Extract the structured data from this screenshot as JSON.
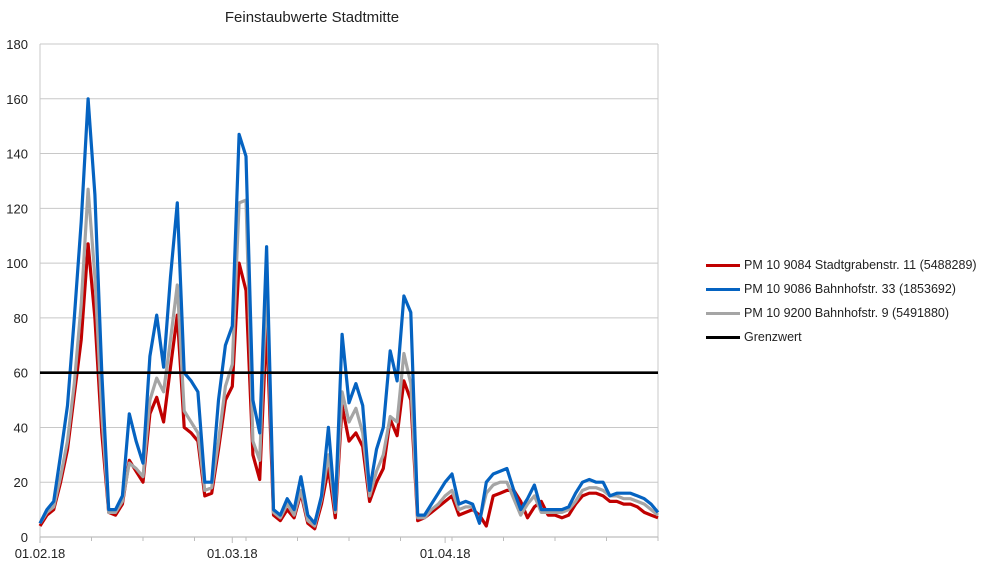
{
  "chart_data": {
    "type": "line",
    "title": "Feinstaubwerte Stadtmitte",
    "xlabel": "",
    "ylabel": "",
    "ylim": [
      0,
      180
    ],
    "yticks": [
      0,
      20,
      40,
      60,
      80,
      100,
      120,
      140,
      160,
      180
    ],
    "xtick_labels": [
      "01.02.18",
      "01.03.18",
      "01.04.18"
    ],
    "xtick_day_index": [
      0,
      28,
      59
    ],
    "x_start": "01.02.18",
    "n_days": 91,
    "grid": "horizontal",
    "legend_position": "right",
    "threshold": {
      "name": "Grenzwert",
      "value": 60,
      "color": "#000000"
    },
    "series": [
      {
        "name": "PM 10 9084 Stadtgrabenstr. 11 (5488289)",
        "color": "#C00000",
        "values": [
          4,
          8,
          10,
          20,
          32,
          52,
          72,
          107,
          80,
          38,
          9,
          8,
          12,
          28,
          24,
          20,
          45,
          51,
          42,
          62,
          81,
          40,
          38,
          35,
          15,
          16,
          32,
          50,
          55,
          100,
          90,
          30,
          21,
          78,
          8,
          6,
          10,
          7,
          16,
          5,
          3,
          12,
          25,
          7,
          48,
          35,
          38,
          33,
          13,
          20,
          25,
          43,
          37,
          57,
          50,
          6,
          7,
          9,
          11,
          13,
          15,
          8,
          9,
          10,
          8,
          4,
          15,
          16,
          17,
          17,
          13,
          7,
          11,
          13,
          8,
          8,
          7,
          8,
          12,
          15,
          16,
          16,
          15,
          13,
          13,
          12,
          12,
          11,
          9,
          8,
          7
        ]
      },
      {
        "name": "PM 10 9086 Bahnhofstr. 33 (1853692)",
        "color": "#0563C1",
        "values": [
          5,
          10,
          13,
          30,
          48,
          80,
          115,
          160,
          125,
          60,
          10,
          10,
          15,
          45,
          35,
          27,
          66,
          81,
          62,
          95,
          122,
          60,
          57,
          53,
          20,
          20,
          50,
          70,
          77,
          147,
          139,
          50,
          38,
          106,
          10,
          8,
          14,
          10,
          22,
          8,
          5,
          15,
          40,
          10,
          74,
          49,
          56,
          48,
          17,
          32,
          40,
          68,
          57,
          88,
          82,
          8,
          8,
          12,
          16,
          20,
          23,
          12,
          13,
          12,
          5,
          20,
          23,
          24,
          25,
          17,
          10,
          14,
          19,
          10,
          10,
          10,
          10,
          11,
          16,
          20,
          21,
          20,
          20,
          15,
          16,
          16,
          16,
          15,
          14,
          12,
          9
        ]
      },
      {
        "name": "PM 10 9200 Bahnhofstr. 9 (5491880)",
        "color": "#A5A5A5",
        "values": [
          5,
          9,
          11,
          22,
          35,
          56,
          85,
          127,
          95,
          45,
          9,
          9,
          13,
          27,
          25,
          22,
          50,
          58,
          53,
          72,
          92,
          46,
          42,
          38,
          17,
          18,
          35,
          55,
          63,
          122,
          123,
          35,
          28,
          94,
          9,
          7,
          12,
          8,
          17,
          6,
          4,
          14,
          30,
          9,
          53,
          42,
          47,
          38,
          15,
          24,
          30,
          44,
          42,
          67,
          56,
          7,
          7,
          10,
          12,
          15,
          17,
          10,
          11,
          11,
          6,
          16,
          19,
          20,
          20,
          14,
          8,
          12,
          15,
          9,
          9,
          9,
          9,
          10,
          13,
          17,
          18,
          18,
          17,
          15,
          15,
          14,
          14,
          13,
          12,
          10,
          8
        ]
      }
    ]
  },
  "legend": {
    "items": [
      {
        "label": "PM 10 9084 Stadtgrabenstr. 11 (5488289)",
        "color": "#C00000"
      },
      {
        "label": "PM 10 9086 Bahnhofstr. 33 (1853692)",
        "color": "#0563C1"
      },
      {
        "label": "PM 10 9200 Bahnhofstr. 9 (5491880)",
        "color": "#A5A5A5"
      },
      {
        "label": "Grenzwert",
        "color": "#000000"
      }
    ]
  }
}
